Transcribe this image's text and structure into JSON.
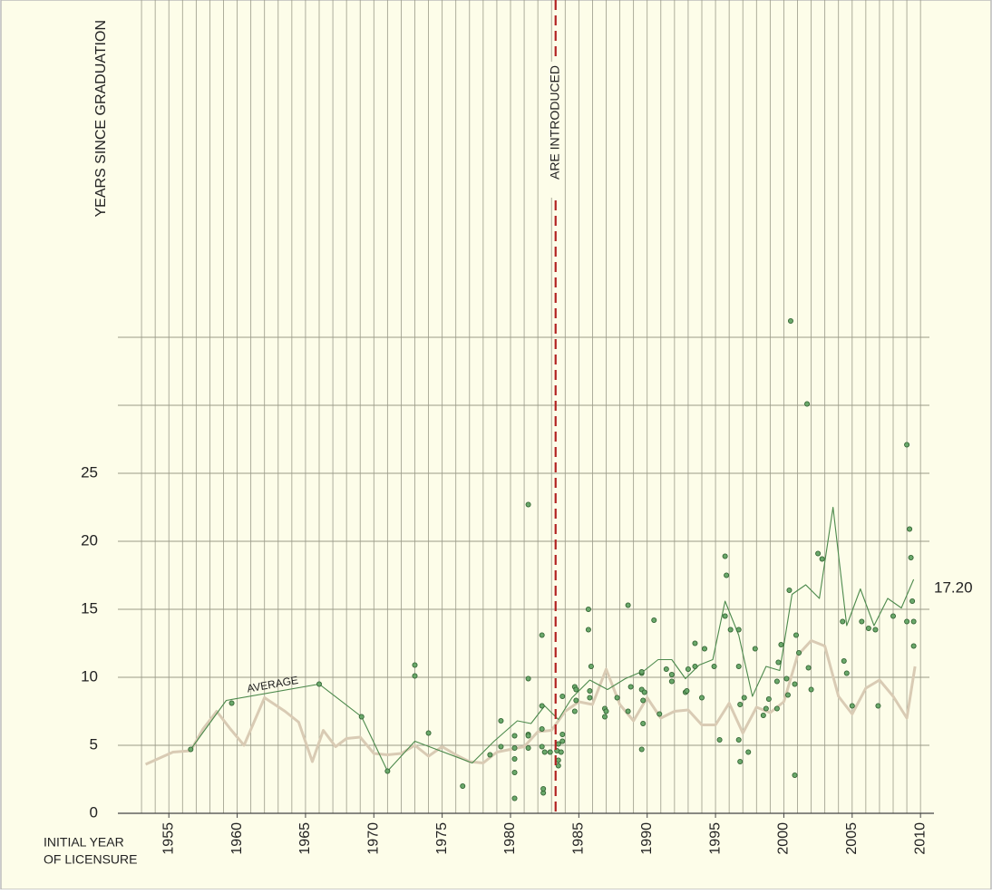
{
  "chart_data": {
    "type": "scatter",
    "y_axis_label": "YEARS SINCE GRADUATION",
    "x_axis_label": [
      "INITIAL YEAR",
      "OF LICENSURE"
    ],
    "marker_label": "ARE INTRODUCED",
    "marker_year": 1983.3,
    "marker_color": "#b22222",
    "average_label": "AVERAGE",
    "end_label": "17.20",
    "xlim": [
      1952,
      2011.45
    ],
    "ylim": [
      0,
      58
    ],
    "xticks": [
      1955,
      1960,
      1965,
      1970,
      1975,
      1980,
      1985,
      1990,
      1995,
      2000,
      2005,
      2010
    ],
    "yticks": [
      0,
      5,
      10,
      15,
      20,
      25
    ],
    "x_gridlines": [
      1953,
      1954,
      1955,
      1956,
      1957,
      1958,
      1959,
      1960,
      1961,
      1962,
      1963,
      1964,
      1965,
      1966,
      1967,
      1968,
      1969,
      1970,
      1971,
      1972,
      1973,
      1974,
      1975,
      1976,
      1977,
      1978,
      1979,
      1980,
      1981,
      1982,
      1983,
      1984,
      1985,
      1986,
      1987,
      1988,
      1989,
      1990,
      1991,
      1992,
      1993,
      1994,
      1995,
      1996,
      1997,
      1998,
      1999,
      2000,
      2001,
      2002,
      2003,
      2004,
      2005,
      2006,
      2007,
      2008,
      2009,
      2010
    ],
    "y_gridlines": [
      5,
      10,
      15,
      20,
      25,
      30,
      35
    ],
    "grid": true,
    "lines": [
      {
        "color": "#d9cbb4",
        "x": [
          1953.3,
          1955.3,
          1956.6,
          1957.5,
          1958.5,
          1959.5,
          1960.5,
          1962,
          1963.5,
          1964.5,
          1965.5,
          1966.3,
          1967.2,
          1968,
          1969,
          1970,
          1971,
          1972,
          1973,
          1974,
          1975,
          1976,
          1977,
          1978,
          1979,
          1980,
          1981,
          1982,
          1983,
          1984,
          1985,
          1986,
          1987,
          1988,
          1989,
          1990,
          1991,
          1992,
          1993,
          1994,
          1995,
          1996,
          1997,
          1998,
          1999,
          2000,
          2001,
          2002,
          2003,
          2004,
          2005,
          2006,
          2007,
          2008,
          2009,
          2009.6
        ],
        "values": [
          3.6,
          4.5,
          4.6,
          6.2,
          7.5,
          6.2,
          5.0,
          8.5,
          7.5,
          6.7,
          3.8,
          6.1,
          4.9,
          5.5,
          5.6,
          4.4,
          4.3,
          4.4,
          5.0,
          4.2,
          4.9,
          4.3,
          3.8,
          3.7,
          4.5,
          4.7,
          4.9,
          6.0,
          6.1,
          7.5,
          8.2,
          8.0,
          10.6,
          8.0,
          6.8,
          8.5,
          7.0,
          7.5,
          7.6,
          6.5,
          6.5,
          8.1,
          5.9,
          7.8,
          7.4,
          8.2,
          11.6,
          12.7,
          12.3,
          8.6,
          7.3,
          9.2,
          9.8,
          8.6,
          7.0,
          10.8
        ]
      },
      {
        "color": "#4d8a4d",
        "x": [
          1956.6,
          1959.2,
          1966.0,
          1969.1,
          1971.0,
          1973.0,
          1977.2,
          1978.8,
          1980.5,
          1981.5,
          1982.5,
          1983.5,
          1984.5,
          1985.8,
          1987.1,
          1988.4,
          1989.8,
          1990.8,
          1991.8,
          1992.8,
          1993.8,
          1994.8,
          1995.7,
          1996.7,
          1997.7,
          1998.7,
          1999.7,
          2000.6,
          2001.6,
          2002.6,
          2003.6,
          2004.6,
          2005.6,
          2006.6,
          2007.6,
          2008.6,
          2009.5
        ],
        "values": [
          4.7,
          8.3,
          9.5,
          7.1,
          3.1,
          5.3,
          3.7,
          5.3,
          6.8,
          6.6,
          7.9,
          6.9,
          8.5,
          9.8,
          9.1,
          9.9,
          10.5,
          11.3,
          11.3,
          9.9,
          10.9,
          11.3,
          15.6,
          13.1,
          8.6,
          10.8,
          10.5,
          16.1,
          16.8,
          15.8,
          22.5,
          13.8,
          16.5,
          13.8,
          15.8,
          15.1,
          17.2
        ]
      }
    ],
    "points": {
      "color": "#6aa86a",
      "x": [
        1956.6,
        1959.6,
        1966.0,
        1969.1,
        1971.0,
        1973.0,
        1973.0,
        1974.0,
        1976.5,
        1978.5,
        1979.3,
        1979.3,
        1980.3,
        1980.3,
        1980.3,
        1980.3,
        1980.3,
        1981.3,
        1981.3,
        1981.3,
        1981.3,
        1981.3,
        1982.3,
        1982.3,
        1982.3,
        1982.3,
        1982.4,
        1982.4,
        1982.5,
        1982.9,
        1983.4,
        1983.5,
        1983.5,
        1983.5,
        1983.7,
        1983.8,
        1983.8,
        1983.8,
        1984.7,
        1984.7,
        1984.8,
        1984.8,
        1985.7,
        1985.7,
        1985.8,
        1985.8,
        1985.9,
        1986.9,
        1986.9,
        1987.0,
        1987.8,
        1988.6,
        1988.8,
        1988.6,
        1989.6,
        1989.6,
        1989.7,
        1989.6,
        1989.7,
        1989.6,
        1989.8,
        1990.5,
        1990.9,
        1991.4,
        1991.8,
        1991.8,
        1992.8,
        1992.9,
        1993.0,
        1993.5,
        1993.5,
        1994.0,
        1994.2,
        1994.9,
        1995.3,
        1995.7,
        1995.8,
        1995.7,
        1996.1,
        1996.7,
        1996.7,
        1996.8,
        1996.7,
        1996.8,
        1997.1,
        1997.4,
        1997.9,
        1998.5,
        1998.7,
        1998.9,
        1999.5,
        1999.5,
        1999.6,
        1999.8,
        2000.2,
        2000.3,
        2000.4,
        2000.5,
        2000.8,
        2000.8,
        2001.1,
        2000.9,
        2001.8,
        2001.7,
        2002.0,
        2002.5,
        2002.8,
        2004.3,
        2004.4,
        2004.6,
        2005.0,
        2005.7,
        2006.2,
        2006.7,
        2006.9,
        2008.0,
        2009.0,
        2009.0,
        2009.2,
        2009.3,
        2009.4,
        2009.5,
        2009.5
      ],
      "y": [
        4.7,
        8.1,
        9.5,
        7.1,
        3.1,
        10.9,
        10.1,
        5.9,
        2.0,
        4.3,
        4.9,
        6.8,
        1.1,
        4.0,
        3.0,
        4.8,
        5.7,
        22.7,
        9.9,
        5.8,
        4.8,
        5.7,
        6.2,
        4.9,
        7.9,
        13.1,
        1.5,
        1.8,
        4.5,
        4.5,
        4.6,
        3.9,
        3.5,
        5.1,
        4.5,
        5.3,
        5.8,
        8.6,
        7.5,
        9.3,
        8.3,
        9.1,
        15.0,
        13.5,
        9.0,
        8.5,
        10.8,
        7.1,
        7.7,
        7.5,
        8.5,
        15.3,
        9.3,
        7.5,
        10.3,
        9.1,
        8.3,
        10.4,
        6.6,
        4.7,
        8.9,
        14.2,
        7.3,
        10.6,
        10.2,
        9.7,
        8.9,
        9.0,
        10.6,
        10.8,
        12.5,
        8.5,
        12.1,
        10.8,
        5.4,
        14.5,
        17.5,
        18.9,
        13.5,
        13.5,
        10.8,
        8.0,
        5.4,
        3.8,
        8.5,
        4.5,
        12.1,
        7.2,
        7.7,
        8.4,
        7.7,
        9.7,
        11.1,
        12.4,
        9.9,
        8.7,
        16.4,
        36.2,
        2.8,
        9.5,
        11.8,
        13.1,
        10.7,
        30.1,
        9.1,
        19.1,
        18.7,
        14.1,
        11.2,
        10.3,
        7.9,
        14.1,
        13.6,
        13.5,
        7.9,
        14.5,
        27.1,
        14.1,
        20.9,
        18.8,
        15.6,
        14.1,
        12.3
      ]
    }
  }
}
